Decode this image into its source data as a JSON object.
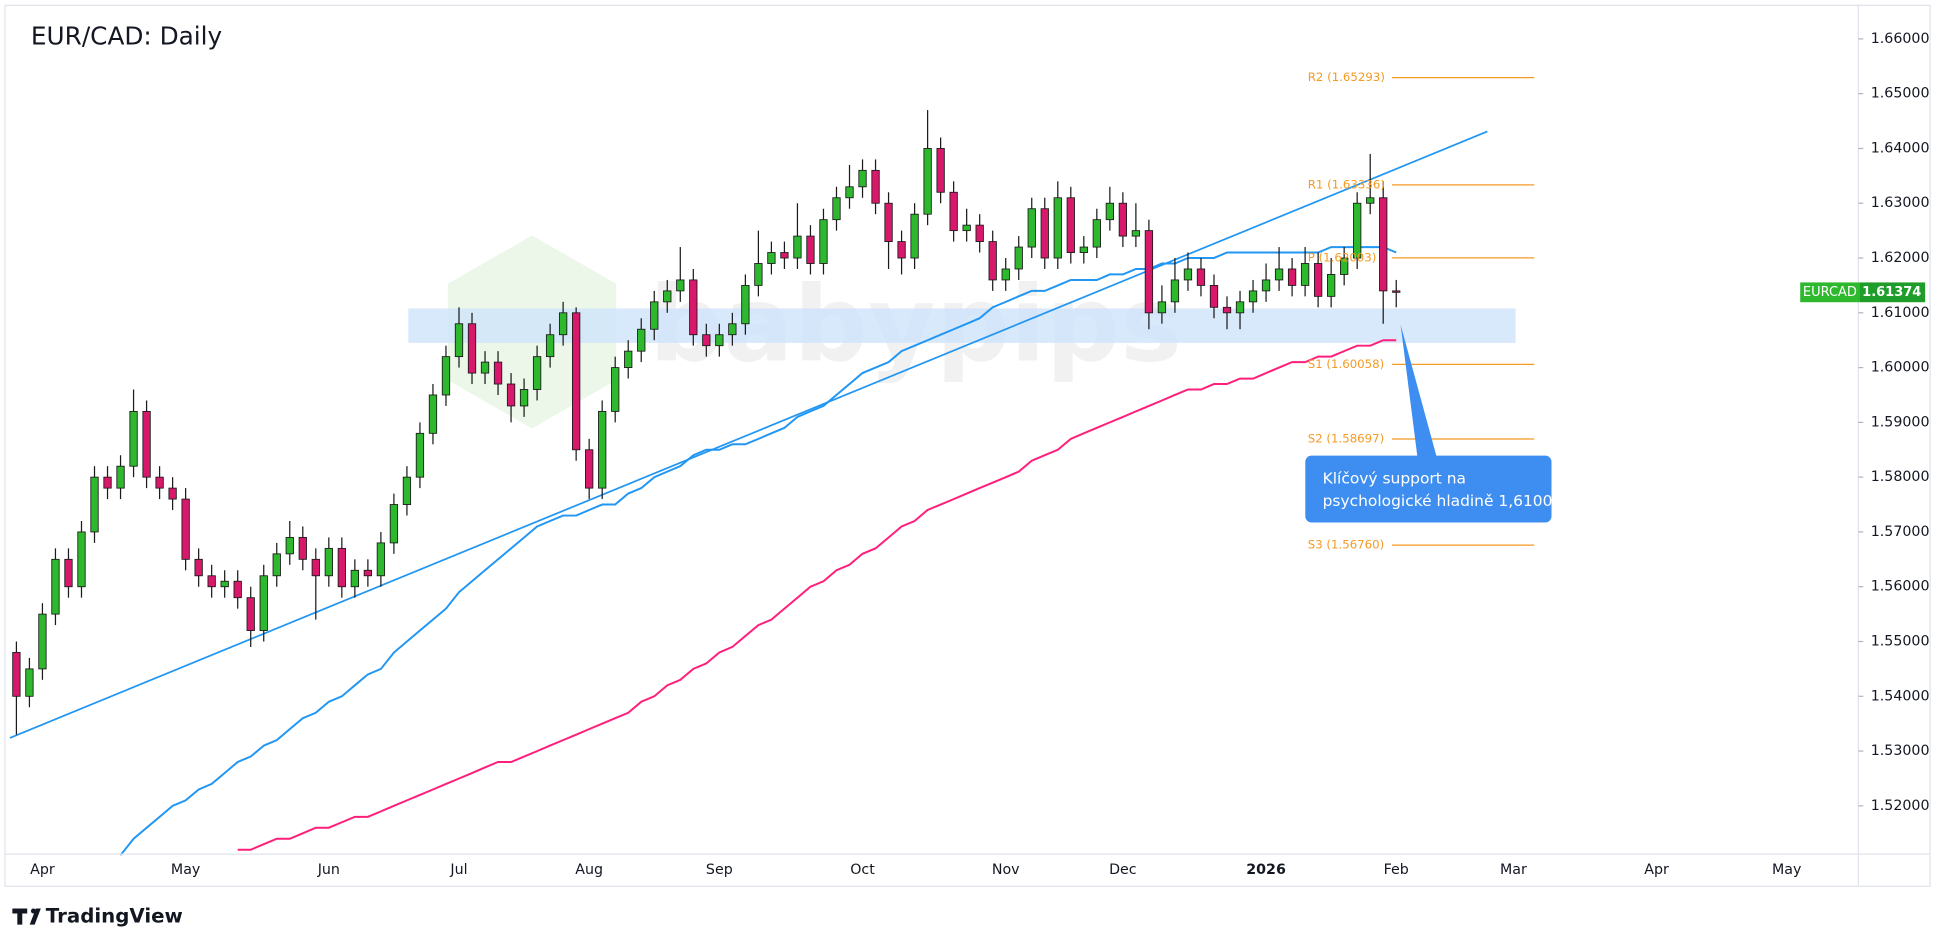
{
  "chart_data": {
    "type": "candlestick",
    "title": "EUR/CAD: Daily",
    "watermark": "babypips",
    "brand": "TradingView",
    "categories": [
      null,
      null,
      "Apr",
      null,
      null,
      null,
      null,
      null,
      null,
      null,
      null,
      null,
      null,
      "May",
      null,
      null,
      null,
      null,
      null,
      null,
      null,
      null,
      null,
      null,
      "Jun",
      null,
      null,
      null,
      null,
      null,
      null,
      null,
      null,
      null,
      "Jul",
      null,
      null,
      null,
      null,
      null,
      null,
      null,
      null,
      null,
      "Aug",
      null,
      null,
      null,
      null,
      null,
      null,
      null,
      null,
      null,
      "Sep",
      null,
      null,
      null,
      null,
      null,
      null,
      null,
      null,
      null,
      null,
      "Oct",
      null,
      null,
      null,
      null,
      null,
      null,
      null,
      null,
      null,
      null,
      "Nov",
      null,
      null,
      null,
      null,
      null,
      null,
      null,
      null,
      "Dec",
      null,
      null,
      null,
      null,
      null,
      null,
      null,
      null,
      null,
      null,
      "2026",
      null,
      null,
      null,
      null,
      null,
      null,
      null,
      null,
      null,
      "Feb",
      null,
      null,
      null,
      null,
      null,
      null,
      null,
      null,
      "Mar",
      null,
      null,
      null,
      null,
      null,
      null,
      null,
      null,
      null,
      null,
      "Apr",
      null,
      null,
      null,
      null,
      null,
      null,
      null,
      null,
      null,
      "May",
      null,
      null,
      null,
      null,
      null
    ],
    "open": [
      1.548,
      1.54,
      1.545,
      1.555,
      1.565,
      1.56,
      1.57,
      1.58,
      1.578,
      1.582,
      1.592,
      1.58,
      1.578,
      1.576,
      1.565,
      1.562,
      1.56,
      1.561,
      1.558,
      1.552,
      1.562,
      1.566,
      1.569,
      1.565,
      1.562,
      1.567,
      1.56,
      1.563,
      1.562,
      1.568,
      1.575,
      1.58,
      1.588,
      1.595,
      1.602,
      1.608,
      1.599,
      1.601,
      1.597,
      1.593,
      1.596,
      1.602,
      1.606,
      1.61,
      1.585,
      1.578,
      1.592,
      1.6,
      1.603,
      1.607,
      1.612,
      1.614,
      1.616,
      1.606,
      1.604,
      1.606,
      1.608,
      1.615,
      1.619,
      1.621,
      1.62,
      1.624,
      1.619,
      1.627,
      1.631,
      1.633,
      1.636,
      1.63,
      1.623,
      1.62,
      1.628,
      1.64,
      1.632,
      1.625,
      1.626,
      1.623,
      1.616,
      1.618,
      1.622,
      1.629,
      1.62,
      1.631,
      1.621,
      1.622,
      1.627,
      1.63,
      1.624,
      1.625,
      1.61,
      1.612,
      1.616,
      1.618,
      1.615,
      1.611,
      1.61,
      1.612,
      1.614,
      1.616,
      1.618,
      1.615,
      1.619,
      1.613,
      1.617,
      1.62,
      1.63,
      1.631,
      1.614,
      null,
      null,
      null,
      null,
      null,
      null,
      null,
      null,
      null,
      null,
      null,
      null,
      null,
      null,
      null,
      null,
      null,
      null,
      null,
      null,
      null,
      null,
      null,
      null,
      null,
      null,
      null,
      null,
      null,
      null,
      null,
      null,
      null,
      null,
      null
    ],
    "high": [
      1.55,
      1.547,
      1.557,
      1.567,
      1.567,
      1.572,
      1.582,
      1.582,
      1.584,
      1.596,
      1.594,
      1.582,
      1.58,
      1.578,
      1.567,
      1.564,
      1.563,
      1.563,
      1.56,
      1.564,
      1.568,
      1.572,
      1.571,
      1.567,
      1.569,
      1.569,
      1.565,
      1.565,
      1.57,
      1.577,
      1.582,
      1.59,
      1.597,
      1.604,
      1.611,
      1.61,
      1.603,
      1.603,
      1.599,
      1.598,
      1.604,
      1.608,
      1.612,
      1.611,
      1.587,
      1.594,
      1.602,
      1.605,
      1.609,
      1.614,
      1.616,
      1.622,
      1.618,
      1.608,
      1.608,
      1.61,
      1.617,
      1.625,
      1.623,
      1.623,
      1.63,
      1.626,
      1.629,
      1.633,
      1.637,
      1.638,
      1.638,
      1.632,
      1.625,
      1.63,
      1.647,
      1.642,
      1.634,
      1.629,
      1.628,
      1.625,
      1.62,
      1.624,
      1.631,
      1.631,
      1.634,
      1.633,
      1.624,
      1.629,
      1.633,
      1.632,
      1.63,
      1.627,
      1.615,
      1.62,
      1.621,
      1.62,
      1.617,
      1.613,
      1.614,
      1.616,
      1.619,
      1.622,
      1.62,
      1.622,
      1.621,
      1.62,
      1.622,
      1.632,
      1.639,
      1.634,
      1.616,
      null,
      null,
      null,
      null,
      null,
      null,
      null,
      null,
      null,
      null,
      null,
      null,
      null,
      null,
      null,
      null,
      null,
      null,
      null,
      null,
      null,
      null,
      null,
      null,
      null,
      null,
      null,
      null,
      null,
      null,
      null,
      null,
      null,
      null,
      null
    ],
    "low": [
      1.533,
      1.538,
      1.543,
      1.553,
      1.558,
      1.558,
      1.568,
      1.576,
      1.576,
      1.58,
      1.578,
      1.576,
      1.574,
      1.563,
      1.56,
      1.558,
      1.558,
      1.556,
      1.549,
      1.55,
      1.56,
      1.564,
      1.563,
      1.554,
      1.56,
      1.558,
      1.558,
      1.56,
      1.56,
      1.566,
      1.573,
      1.578,
      1.586,
      1.593,
      1.6,
      1.597,
      1.597,
      1.595,
      1.59,
      1.591,
      1.594,
      1.6,
      1.604,
      1.583,
      1.576,
      1.576,
      1.59,
      1.598,
      1.601,
      1.605,
      1.61,
      1.612,
      1.604,
      1.602,
      1.602,
      1.604,
      1.606,
      1.613,
      1.617,
      1.618,
      1.618,
      1.617,
      1.617,
      1.625,
      1.629,
      1.631,
      1.628,
      1.618,
      1.617,
      1.618,
      1.626,
      1.63,
      1.623,
      1.623,
      1.621,
      1.614,
      1.614,
      1.616,
      1.62,
      1.618,
      1.618,
      1.619,
      1.619,
      1.62,
      1.625,
      1.622,
      1.622,
      1.607,
      1.608,
      1.61,
      1.614,
      1.613,
      1.609,
      1.607,
      1.607,
      1.61,
      1.612,
      1.614,
      1.613,
      1.613,
      1.611,
      1.611,
      1.615,
      1.618,
      1.628,
      1.608,
      1.611,
      null,
      null,
      null,
      null,
      null,
      null,
      null,
      null,
      null,
      null,
      null,
      null,
      null,
      null,
      null,
      null,
      null,
      null,
      null,
      null,
      null,
      null,
      null,
      null,
      null,
      null,
      null,
      null,
      null,
      null,
      null,
      null,
      null,
      null,
      null
    ],
    "close": [
      1.54,
      1.545,
      1.555,
      1.565,
      1.56,
      1.57,
      1.58,
      1.578,
      1.582,
      1.592,
      1.58,
      1.578,
      1.576,
      1.565,
      1.562,
      1.56,
      1.561,
      1.558,
      1.552,
      1.562,
      1.566,
      1.569,
      1.565,
      1.562,
      1.567,
      1.56,
      1.563,
      1.562,
      1.568,
      1.575,
      1.58,
      1.588,
      1.595,
      1.602,
      1.608,
      1.599,
      1.601,
      1.597,
      1.593,
      1.596,
      1.602,
      1.606,
      1.61,
      1.585,
      1.578,
      1.592,
      1.6,
      1.603,
      1.607,
      1.612,
      1.614,
      1.616,
      1.606,
      1.604,
      1.606,
      1.608,
      1.615,
      1.619,
      1.621,
      1.62,
      1.624,
      1.619,
      1.627,
      1.631,
      1.633,
      1.636,
      1.63,
      1.623,
      1.62,
      1.628,
      1.64,
      1.632,
      1.625,
      1.626,
      1.623,
      1.616,
      1.618,
      1.622,
      1.629,
      1.62,
      1.631,
      1.621,
      1.622,
      1.627,
      1.63,
      1.624,
      1.625,
      1.61,
      1.612,
      1.616,
      1.618,
      1.615,
      1.611,
      1.61,
      1.612,
      1.614,
      1.616,
      1.618,
      1.615,
      1.619,
      1.613,
      1.617,
      1.62,
      1.63,
      1.631,
      1.614,
      1.61374,
      null,
      null,
      null,
      null,
      null,
      null,
      null,
      null,
      null,
      null,
      null,
      null,
      null,
      null,
      null,
      null,
      null,
      null,
      null,
      null,
      null,
      null,
      null,
      null,
      null,
      null,
      null,
      null,
      null,
      null,
      null,
      null,
      null,
      null,
      null
    ],
    "up_color": "#2eb82e",
    "down_color": "#d8186a",
    "moving_averages": [
      {
        "color": "#2196f3",
        "values": [
          null,
          null,
          null,
          null,
          null,
          null,
          null,
          null,
          1.511,
          1.514,
          1.516,
          1.518,
          1.52,
          1.521,
          1.523,
          1.524,
          1.526,
          1.528,
          1.529,
          1.531,
          1.532,
          1.534,
          1.536,
          1.537,
          1.539,
          1.54,
          1.542,
          1.544,
          1.545,
          1.548,
          1.55,
          1.552,
          1.554,
          1.556,
          1.559,
          1.561,
          1.563,
          1.565,
          1.567,
          1.569,
          1.571,
          1.572,
          1.573,
          1.573,
          1.574,
          1.575,
          1.575,
          1.577,
          1.578,
          1.58,
          1.581,
          1.582,
          1.584,
          1.585,
          1.585,
          1.586,
          1.586,
          1.587,
          1.588,
          1.589,
          1.591,
          1.592,
          1.593,
          1.595,
          1.597,
          1.599,
          1.6,
          1.601,
          1.603,
          1.604,
          1.605,
          1.606,
          1.607,
          1.608,
          1.609,
          1.611,
          1.612,
          1.613,
          1.614,
          1.614,
          1.615,
          1.616,
          1.616,
          1.616,
          1.617,
          1.617,
          1.618,
          1.618,
          1.619,
          1.619,
          1.62,
          1.62,
          1.62,
          1.621,
          1.621,
          1.621,
          1.621,
          1.621,
          1.621,
          1.621,
          1.621,
          1.622,
          1.622,
          1.622,
          1.622,
          1.622,
          1.621,
          null,
          null,
          null,
          null,
          null,
          null,
          null,
          null,
          null,
          null,
          null,
          null,
          null,
          null,
          null,
          null,
          null,
          null,
          null,
          null,
          null,
          null,
          null,
          null,
          null,
          null,
          null,
          null,
          null,
          null,
          null,
          null,
          null,
          null,
          null
        ]
      },
      {
        "color": "#ff1f7a",
        "values": [
          null,
          null,
          null,
          null,
          null,
          null,
          null,
          null,
          null,
          null,
          null,
          null,
          null,
          null,
          null,
          null,
          null,
          1.512,
          1.512,
          1.513,
          1.514,
          1.514,
          1.515,
          1.516,
          1.516,
          1.517,
          1.518,
          1.518,
          1.519,
          1.52,
          1.521,
          1.522,
          1.523,
          1.524,
          1.525,
          1.526,
          1.527,
          1.528,
          1.528,
          1.529,
          1.53,
          1.531,
          1.532,
          1.533,
          1.534,
          1.535,
          1.536,
          1.537,
          1.539,
          1.54,
          1.542,
          1.543,
          1.545,
          1.546,
          1.548,
          1.549,
          1.551,
          1.553,
          1.554,
          1.556,
          1.558,
          1.56,
          1.561,
          1.563,
          1.564,
          1.566,
          1.567,
          1.569,
          1.571,
          1.572,
          1.574,
          1.575,
          1.576,
          1.577,
          1.578,
          1.579,
          1.58,
          1.581,
          1.583,
          1.584,
          1.585,
          1.587,
          1.588,
          1.589,
          1.59,
          1.591,
          1.592,
          1.593,
          1.594,
          1.595,
          1.596,
          1.596,
          1.597,
          1.597,
          1.598,
          1.598,
          1.599,
          1.6,
          1.601,
          1.601,
          1.602,
          1.602,
          1.603,
          1.604,
          1.604,
          1.605,
          1.605,
          null,
          null,
          null,
          null,
          null,
          null,
          null,
          null,
          null,
          null,
          null,
          null,
          null,
          null,
          null,
          null,
          null,
          null,
          null,
          null,
          null,
          null,
          null,
          null,
          null,
          null,
          null,
          null,
          null,
          null,
          null,
          null,
          null,
          null,
          null
        ]
      }
    ],
    "trendline": {
      "color": "#2196f3",
      "values": [
        1.5324,
        1.6431
      ]
    },
    "support_zone": {
      "color": "#cfe3fb",
      "values": [
        1.6045,
        1.6108
      ]
    },
    "pivots": [
      {
        "label": "R2 (1.65293)",
        "value": 1.65293
      },
      {
        "label": "R1 (1.63336)",
        "value": 1.63336
      },
      {
        "label": "P (1.62003)",
        "value": 1.62003
      },
      {
        "label": "S1 (1.60058)",
        "value": 1.60058
      },
      {
        "label": "S2 (1.58697)",
        "value": 1.58697
      },
      {
        "label": "S3 (1.56760)",
        "value": 1.5676
      }
    ],
    "pivot_color": "#f59a23",
    "callout": [
      "Klíčový support na",
      "psychologické hladině 1,6100"
    ],
    "symbol": "EURCAD",
    "last_price": 1.61374,
    "ylim": [
      1.5112,
      1.6659
    ],
    "yticks": [
      {
        "value": 1.52,
        "label": "1.52000"
      },
      {
        "value": 1.53,
        "label": "1.53000"
      },
      {
        "value": 1.54,
        "label": "1.54000"
      },
      {
        "value": 1.55,
        "label": "1.55000"
      },
      {
        "value": 1.56,
        "label": "1.56000"
      },
      {
        "value": 1.57,
        "label": "1.57000"
      },
      {
        "value": 1.58,
        "label": "1.58000"
      },
      {
        "value": 1.59,
        "label": "1.59000"
      },
      {
        "value": 1.6,
        "label": "1.60000"
      },
      {
        "value": 1.61,
        "label": "1.61000"
      },
      {
        "value": 1.62,
        "label": "1.62000"
      },
      {
        "value": 1.63,
        "label": "1.63000"
      },
      {
        "value": 1.64,
        "label": "1.64000"
      },
      {
        "value": 1.65,
        "label": "1.65000"
      },
      {
        "value": 1.66,
        "label": "1.66000"
      }
    ],
    "grid": false
  }
}
